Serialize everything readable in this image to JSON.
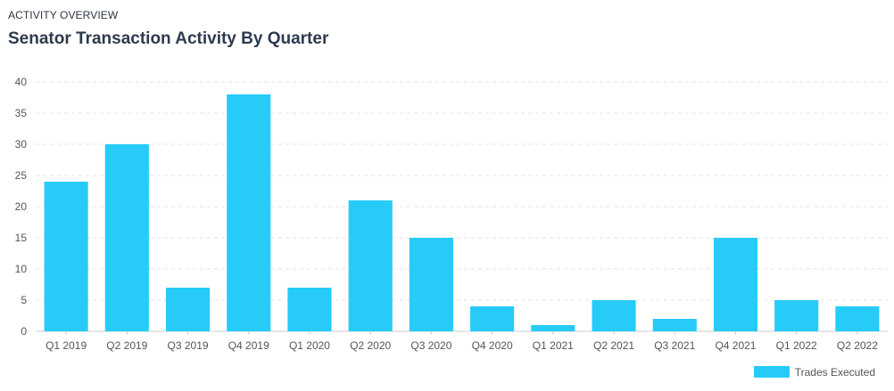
{
  "header": {
    "eyebrow": "ACTIVITY OVERVIEW",
    "title": "Senator Transaction Activity By Quarter"
  },
  "colors": {
    "bar": "#26CBF7",
    "grid": "#e3e3e3",
    "axis": "#cccccc",
    "text": "#555555"
  },
  "chart_data": {
    "type": "bar",
    "title": "Senator Transaction Activity By Quarter",
    "categories": [
      "Q1 2019",
      "Q2 2019",
      "Q3 2019",
      "Q4 2019",
      "Q1 2020",
      "Q2 2020",
      "Q3 2020",
      "Q4 2020",
      "Q1 2021",
      "Q2 2021",
      "Q3 2021",
      "Q4 2021",
      "Q1 2022",
      "Q2 2022"
    ],
    "series": [
      {
        "name": "Trades Executed",
        "values": [
          24,
          30,
          7,
          38,
          7,
          21,
          15,
          4,
          1,
          5,
          2,
          15,
          5,
          4
        ]
      }
    ],
    "ylim": [
      0,
      40
    ],
    "yticks": [
      0,
      5,
      10,
      15,
      20,
      25,
      30,
      35,
      40
    ],
    "xlabel": "",
    "ylabel": "",
    "grid": true,
    "legend_position": "bottom-right"
  }
}
